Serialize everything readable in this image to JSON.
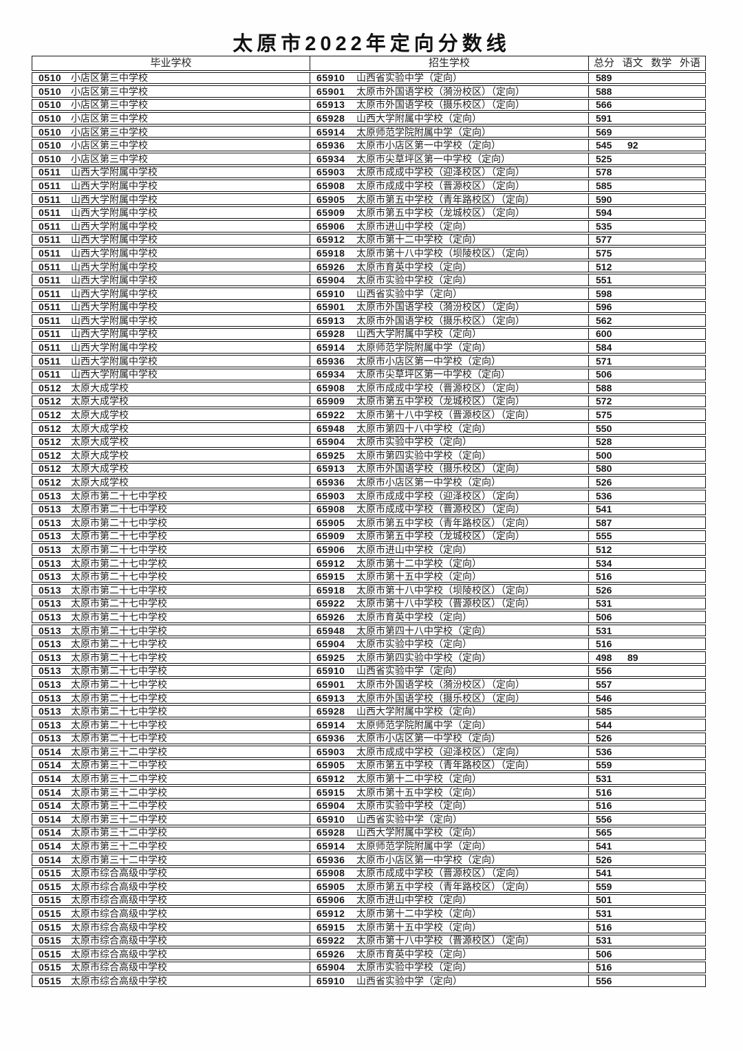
{
  "title": "太原市2022年定向分数线",
  "table": {
    "headers": {
      "grad_school": "毕业学校",
      "admit_school": "招生学校",
      "score_cols": [
        "总分",
        "语文",
        "数学",
        "外语"
      ]
    },
    "rows": [
      {
        "gc": "0510",
        "gn": "小店区第三中学校",
        "ac": "65910",
        "an": "山西省实验中学（定向）",
        "total": "589",
        "yuwen": ""
      },
      {
        "gc": "0510",
        "gn": "小店区第三中学校",
        "ac": "65901",
        "an": "太原市外国语学校（漪汾校区）（定向）",
        "total": "588",
        "yuwen": ""
      },
      {
        "gc": "0510",
        "gn": "小店区第三中学校",
        "ac": "65913",
        "an": "太原市外国语学校（摄乐校区）（定向）",
        "total": "566",
        "yuwen": ""
      },
      {
        "gc": "0510",
        "gn": "小店区第三中学校",
        "ac": "65928",
        "an": "山西大学附属中学校（定向）",
        "total": "591",
        "yuwen": ""
      },
      {
        "gc": "0510",
        "gn": "小店区第三中学校",
        "ac": "65914",
        "an": "太原师范学院附属中学（定向）",
        "total": "569",
        "yuwen": ""
      },
      {
        "gc": "0510",
        "gn": "小店区第三中学校",
        "ac": "65936",
        "an": "太原市小店区第一中学校（定向）",
        "total": "545",
        "yuwen": "92"
      },
      {
        "gc": "0510",
        "gn": "小店区第三中学校",
        "ac": "65934",
        "an": "太原市尖草坪区第一中学校（定向）",
        "total": "525",
        "yuwen": ""
      },
      {
        "gc": "0511",
        "gn": "山西大学附属中学校",
        "ac": "65903",
        "an": "太原市成成中学校（迎泽校区）（定向）",
        "total": "578",
        "yuwen": ""
      },
      {
        "gc": "0511",
        "gn": "山西大学附属中学校",
        "ac": "65908",
        "an": "太原市成成中学校（晋源校区）（定向）",
        "total": "585",
        "yuwen": ""
      },
      {
        "gc": "0511",
        "gn": "山西大学附属中学校",
        "ac": "65905",
        "an": "太原市第五中学校（青年路校区）（定向）",
        "total": "590",
        "yuwen": ""
      },
      {
        "gc": "0511",
        "gn": "山西大学附属中学校",
        "ac": "65909",
        "an": "太原市第五中学校（龙城校区）（定向）",
        "total": "594",
        "yuwen": ""
      },
      {
        "gc": "0511",
        "gn": "山西大学附属中学校",
        "ac": "65906",
        "an": "太原市进山中学校（定向）",
        "total": "535",
        "yuwen": ""
      },
      {
        "gc": "0511",
        "gn": "山西大学附属中学校",
        "ac": "65912",
        "an": "太原市第十二中学校（定向）",
        "total": "577",
        "yuwen": ""
      },
      {
        "gc": "0511",
        "gn": "山西大学附属中学校",
        "ac": "65918",
        "an": "太原市第十八中学校（坝陵校区）（定向）",
        "total": "575",
        "yuwen": ""
      },
      {
        "gc": "0511",
        "gn": "山西大学附属中学校",
        "ac": "65926",
        "an": "太原市育英中学校（定向）",
        "total": "512",
        "yuwen": ""
      },
      {
        "gc": "0511",
        "gn": "山西大学附属中学校",
        "ac": "65904",
        "an": "太原市实验中学校（定向）",
        "total": "551",
        "yuwen": ""
      },
      {
        "gc": "0511",
        "gn": "山西大学附属中学校",
        "ac": "65910",
        "an": "山西省实验中学（定向）",
        "total": "598",
        "yuwen": ""
      },
      {
        "gc": "0511",
        "gn": "山西大学附属中学校",
        "ac": "65901",
        "an": "太原市外国语学校（漪汾校区）（定向）",
        "total": "596",
        "yuwen": ""
      },
      {
        "gc": "0511",
        "gn": "山西大学附属中学校",
        "ac": "65913",
        "an": "太原市外国语学校（摄乐校区）（定向）",
        "total": "562",
        "yuwen": ""
      },
      {
        "gc": "0511",
        "gn": "山西大学附属中学校",
        "ac": "65928",
        "an": "山西大学附属中学校（定向）",
        "total": "600",
        "yuwen": ""
      },
      {
        "gc": "0511",
        "gn": "山西大学附属中学校",
        "ac": "65914",
        "an": "太原师范学院附属中学（定向）",
        "total": "584",
        "yuwen": ""
      },
      {
        "gc": "0511",
        "gn": "山西大学附属中学校",
        "ac": "65936",
        "an": "太原市小店区第一中学校（定向）",
        "total": "571",
        "yuwen": ""
      },
      {
        "gc": "0511",
        "gn": "山西大学附属中学校",
        "ac": "65934",
        "an": "太原市尖草坪区第一中学校（定向）",
        "total": "506",
        "yuwen": ""
      },
      {
        "gc": "0512",
        "gn": "太原大成学校",
        "ac": "65908",
        "an": "太原市成成中学校（晋源校区）（定向）",
        "total": "588",
        "yuwen": ""
      },
      {
        "gc": "0512",
        "gn": "太原大成学校",
        "ac": "65909",
        "an": "太原市第五中学校（龙城校区）（定向）",
        "total": "572",
        "yuwen": ""
      },
      {
        "gc": "0512",
        "gn": "太原大成学校",
        "ac": "65922",
        "an": "太原市第十八中学校（晋源校区）（定向）",
        "total": "575",
        "yuwen": ""
      },
      {
        "gc": "0512",
        "gn": "太原大成学校",
        "ac": "65948",
        "an": "太原市第四十八中学校（定向）",
        "total": "550",
        "yuwen": ""
      },
      {
        "gc": "0512",
        "gn": "太原大成学校",
        "ac": "65904",
        "an": "太原市实验中学校（定向）",
        "total": "528",
        "yuwen": ""
      },
      {
        "gc": "0512",
        "gn": "太原大成学校",
        "ac": "65925",
        "an": "太原市第四实验中学校（定向）",
        "total": "500",
        "yuwen": ""
      },
      {
        "gc": "0512",
        "gn": "太原大成学校",
        "ac": "65913",
        "an": "太原市外国语学校（摄乐校区）（定向）",
        "total": "580",
        "yuwen": ""
      },
      {
        "gc": "0512",
        "gn": "太原大成学校",
        "ac": "65936",
        "an": "太原市小店区第一中学校（定向）",
        "total": "526",
        "yuwen": ""
      },
      {
        "gc": "0513",
        "gn": "太原市第二十七中学校",
        "ac": "65903",
        "an": "太原市成成中学校（迎泽校区）（定向）",
        "total": "536",
        "yuwen": ""
      },
      {
        "gc": "0513",
        "gn": "太原市第二十七中学校",
        "ac": "65908",
        "an": "太原市成成中学校（晋源校区）（定向）",
        "total": "541",
        "yuwen": ""
      },
      {
        "gc": "0513",
        "gn": "太原市第二十七中学校",
        "ac": "65905",
        "an": "太原市第五中学校（青年路校区）（定向）",
        "total": "587",
        "yuwen": ""
      },
      {
        "gc": "0513",
        "gn": "太原市第二十七中学校",
        "ac": "65909",
        "an": "太原市第五中学校（龙城校区）（定向）",
        "total": "555",
        "yuwen": ""
      },
      {
        "gc": "0513",
        "gn": "太原市第二十七中学校",
        "ac": "65906",
        "an": "太原市进山中学校（定向）",
        "total": "512",
        "yuwen": ""
      },
      {
        "gc": "0513",
        "gn": "太原市第二十七中学校",
        "ac": "65912",
        "an": "太原市第十二中学校（定向）",
        "total": "534",
        "yuwen": ""
      },
      {
        "gc": "0513",
        "gn": "太原市第二十七中学校",
        "ac": "65915",
        "an": "太原市第十五中学校（定向）",
        "total": "516",
        "yuwen": ""
      },
      {
        "gc": "0513",
        "gn": "太原市第二十七中学校",
        "ac": "65918",
        "an": "太原市第十八中学校（坝陵校区）（定向）",
        "total": "526",
        "yuwen": ""
      },
      {
        "gc": "0513",
        "gn": "太原市第二十七中学校",
        "ac": "65922",
        "an": "太原市第十八中学校（晋源校区）（定向）",
        "total": "531",
        "yuwen": ""
      },
      {
        "gc": "0513",
        "gn": "太原市第二十七中学校",
        "ac": "65926",
        "an": "太原市育英中学校（定向）",
        "total": "506",
        "yuwen": ""
      },
      {
        "gc": "0513",
        "gn": "太原市第二十七中学校",
        "ac": "65948",
        "an": "太原市第四十八中学校（定向）",
        "total": "531",
        "yuwen": ""
      },
      {
        "gc": "0513",
        "gn": "太原市第二十七中学校",
        "ac": "65904",
        "an": "太原市实验中学校（定向）",
        "total": "516",
        "yuwen": ""
      },
      {
        "gc": "0513",
        "gn": "太原市第二十七中学校",
        "ac": "65925",
        "an": "太原市第四实验中学校（定向）",
        "total": "498",
        "yuwen": "89"
      },
      {
        "gc": "0513",
        "gn": "太原市第二十七中学校",
        "ac": "65910",
        "an": "山西省实验中学（定向）",
        "total": "556",
        "yuwen": ""
      },
      {
        "gc": "0513",
        "gn": "太原市第二十七中学校",
        "ac": "65901",
        "an": "太原市外国语学校（漪汾校区）（定向）",
        "total": "557",
        "yuwen": ""
      },
      {
        "gc": "0513",
        "gn": "太原市第二十七中学校",
        "ac": "65913",
        "an": "太原市外国语学校（摄乐校区）（定向）",
        "total": "546",
        "yuwen": ""
      },
      {
        "gc": "0513",
        "gn": "太原市第二十七中学校",
        "ac": "65928",
        "an": "山西大学附属中学校（定向）",
        "total": "585",
        "yuwen": ""
      },
      {
        "gc": "0513",
        "gn": "太原市第二十七中学校",
        "ac": "65914",
        "an": "太原师范学院附属中学（定向）",
        "total": "544",
        "yuwen": ""
      },
      {
        "gc": "0513",
        "gn": "太原市第二十七中学校",
        "ac": "65936",
        "an": "太原市小店区第一中学校（定向）",
        "total": "526",
        "yuwen": ""
      },
      {
        "gc": "0514",
        "gn": "太原市第三十二中学校",
        "ac": "65903",
        "an": "太原市成成中学校（迎泽校区）（定向）",
        "total": "536",
        "yuwen": ""
      },
      {
        "gc": "0514",
        "gn": "太原市第三十二中学校",
        "ac": "65905",
        "an": "太原市第五中学校（青年路校区）（定向）",
        "total": "559",
        "yuwen": ""
      },
      {
        "gc": "0514",
        "gn": "太原市第三十二中学校",
        "ac": "65912",
        "an": "太原市第十二中学校（定向）",
        "total": "531",
        "yuwen": ""
      },
      {
        "gc": "0514",
        "gn": "太原市第三十二中学校",
        "ac": "65915",
        "an": "太原市第十五中学校（定向）",
        "total": "516",
        "yuwen": ""
      },
      {
        "gc": "0514",
        "gn": "太原市第三十二中学校",
        "ac": "65904",
        "an": "太原市实验中学校（定向）",
        "total": "516",
        "yuwen": ""
      },
      {
        "gc": "0514",
        "gn": "太原市第三十二中学校",
        "ac": "65910",
        "an": "山西省实验中学（定向）",
        "total": "556",
        "yuwen": ""
      },
      {
        "gc": "0514",
        "gn": "太原市第三十二中学校",
        "ac": "65928",
        "an": "山西大学附属中学校（定向）",
        "total": "565",
        "yuwen": ""
      },
      {
        "gc": "0514",
        "gn": "太原市第三十二中学校",
        "ac": "65914",
        "an": "太原师范学院附属中学（定向）",
        "total": "541",
        "yuwen": ""
      },
      {
        "gc": "0514",
        "gn": "太原市第三十二中学校",
        "ac": "65936",
        "an": "太原市小店区第一中学校（定向）",
        "total": "526",
        "yuwen": ""
      },
      {
        "gc": "0515",
        "gn": "太原市综合高级中学校",
        "ac": "65908",
        "an": "太原市成成中学校（晋源校区）（定向）",
        "total": "541",
        "yuwen": ""
      },
      {
        "gc": "0515",
        "gn": "太原市综合高级中学校",
        "ac": "65905",
        "an": "太原市第五中学校（青年路校区）（定向）",
        "total": "559",
        "yuwen": ""
      },
      {
        "gc": "0515",
        "gn": "太原市综合高级中学校",
        "ac": "65906",
        "an": "太原市进山中学校（定向）",
        "total": "501",
        "yuwen": ""
      },
      {
        "gc": "0515",
        "gn": "太原市综合高级中学校",
        "ac": "65912",
        "an": "太原市第十二中学校（定向）",
        "total": "531",
        "yuwen": ""
      },
      {
        "gc": "0515",
        "gn": "太原市综合高级中学校",
        "ac": "65915",
        "an": "太原市第十五中学校（定向）",
        "total": "516",
        "yuwen": ""
      },
      {
        "gc": "0515",
        "gn": "太原市综合高级中学校",
        "ac": "65922",
        "an": "太原市第十八中学校（晋源校区）（定向）",
        "total": "531",
        "yuwen": ""
      },
      {
        "gc": "0515",
        "gn": "太原市综合高级中学校",
        "ac": "65926",
        "an": "太原市育英中学校（定向）",
        "total": "506",
        "yuwen": ""
      },
      {
        "gc": "0515",
        "gn": "太原市综合高级中学校",
        "ac": "65904",
        "an": "太原市实验中学校（定向）",
        "total": "516",
        "yuwen": ""
      },
      {
        "gc": "0515",
        "gn": "太原市综合高级中学校",
        "ac": "65910",
        "an": "山西省实验中学（定向）",
        "total": "556",
        "yuwen": ""
      }
    ]
  }
}
